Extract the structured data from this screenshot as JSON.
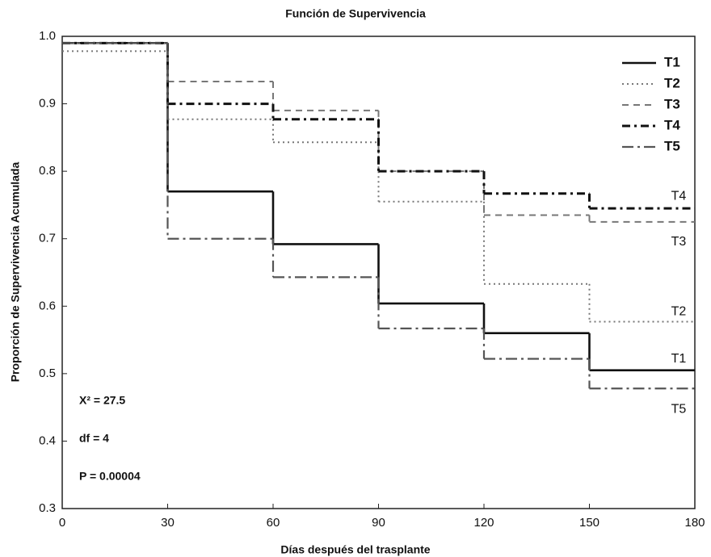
{
  "chart_data": {
    "type": "step",
    "title": "Función de Supervivencia",
    "x_label": "Días después del trasplante",
    "y_label": "Proporción de Supervivencia Acumulada",
    "x": [
      0,
      30,
      60,
      90,
      120,
      150
    ],
    "series": [
      {
        "name": "T1",
        "color": "#111111",
        "dash": "solid",
        "values": [
          0.99,
          0.77,
          0.692,
          0.604,
          0.56,
          0.505
        ]
      },
      {
        "name": "T2",
        "color": "#777777",
        "dash": "dotted",
        "values": [
          0.978,
          0.877,
          0.843,
          0.755,
          0.633,
          0.577
        ]
      },
      {
        "name": "T3",
        "color": "#777777",
        "dash": "dashed",
        "values": [
          0.99,
          0.933,
          0.89,
          0.8,
          0.735,
          0.725
        ]
      },
      {
        "name": "T4",
        "color": "#111111",
        "dash": "dashdot",
        "values": [
          0.99,
          0.9,
          0.877,
          0.8,
          0.767,
          0.745
        ]
      },
      {
        "name": "T5",
        "color": "#555555",
        "dash": "longdashdot",
        "values": [
          0.99,
          0.7,
          0.643,
          0.567,
          0.522,
          0.478
        ]
      }
    ],
    "xlim": [
      0,
      180
    ],
    "xticks": [
      0,
      30,
      60,
      90,
      120,
      150,
      180
    ],
    "ylim": [
      0.3,
      1
    ],
    "yticks": [
      0.3,
      0.4,
      0.5,
      0.6,
      0.7,
      0.8,
      0.9,
      {
        "value": 1,
        "label": "1.0"
      }
    ],
    "legend": "upper right",
    "annotations": [
      "X² = 27.5",
      "df = 4",
      "P  = 0.00004"
    ]
  }
}
